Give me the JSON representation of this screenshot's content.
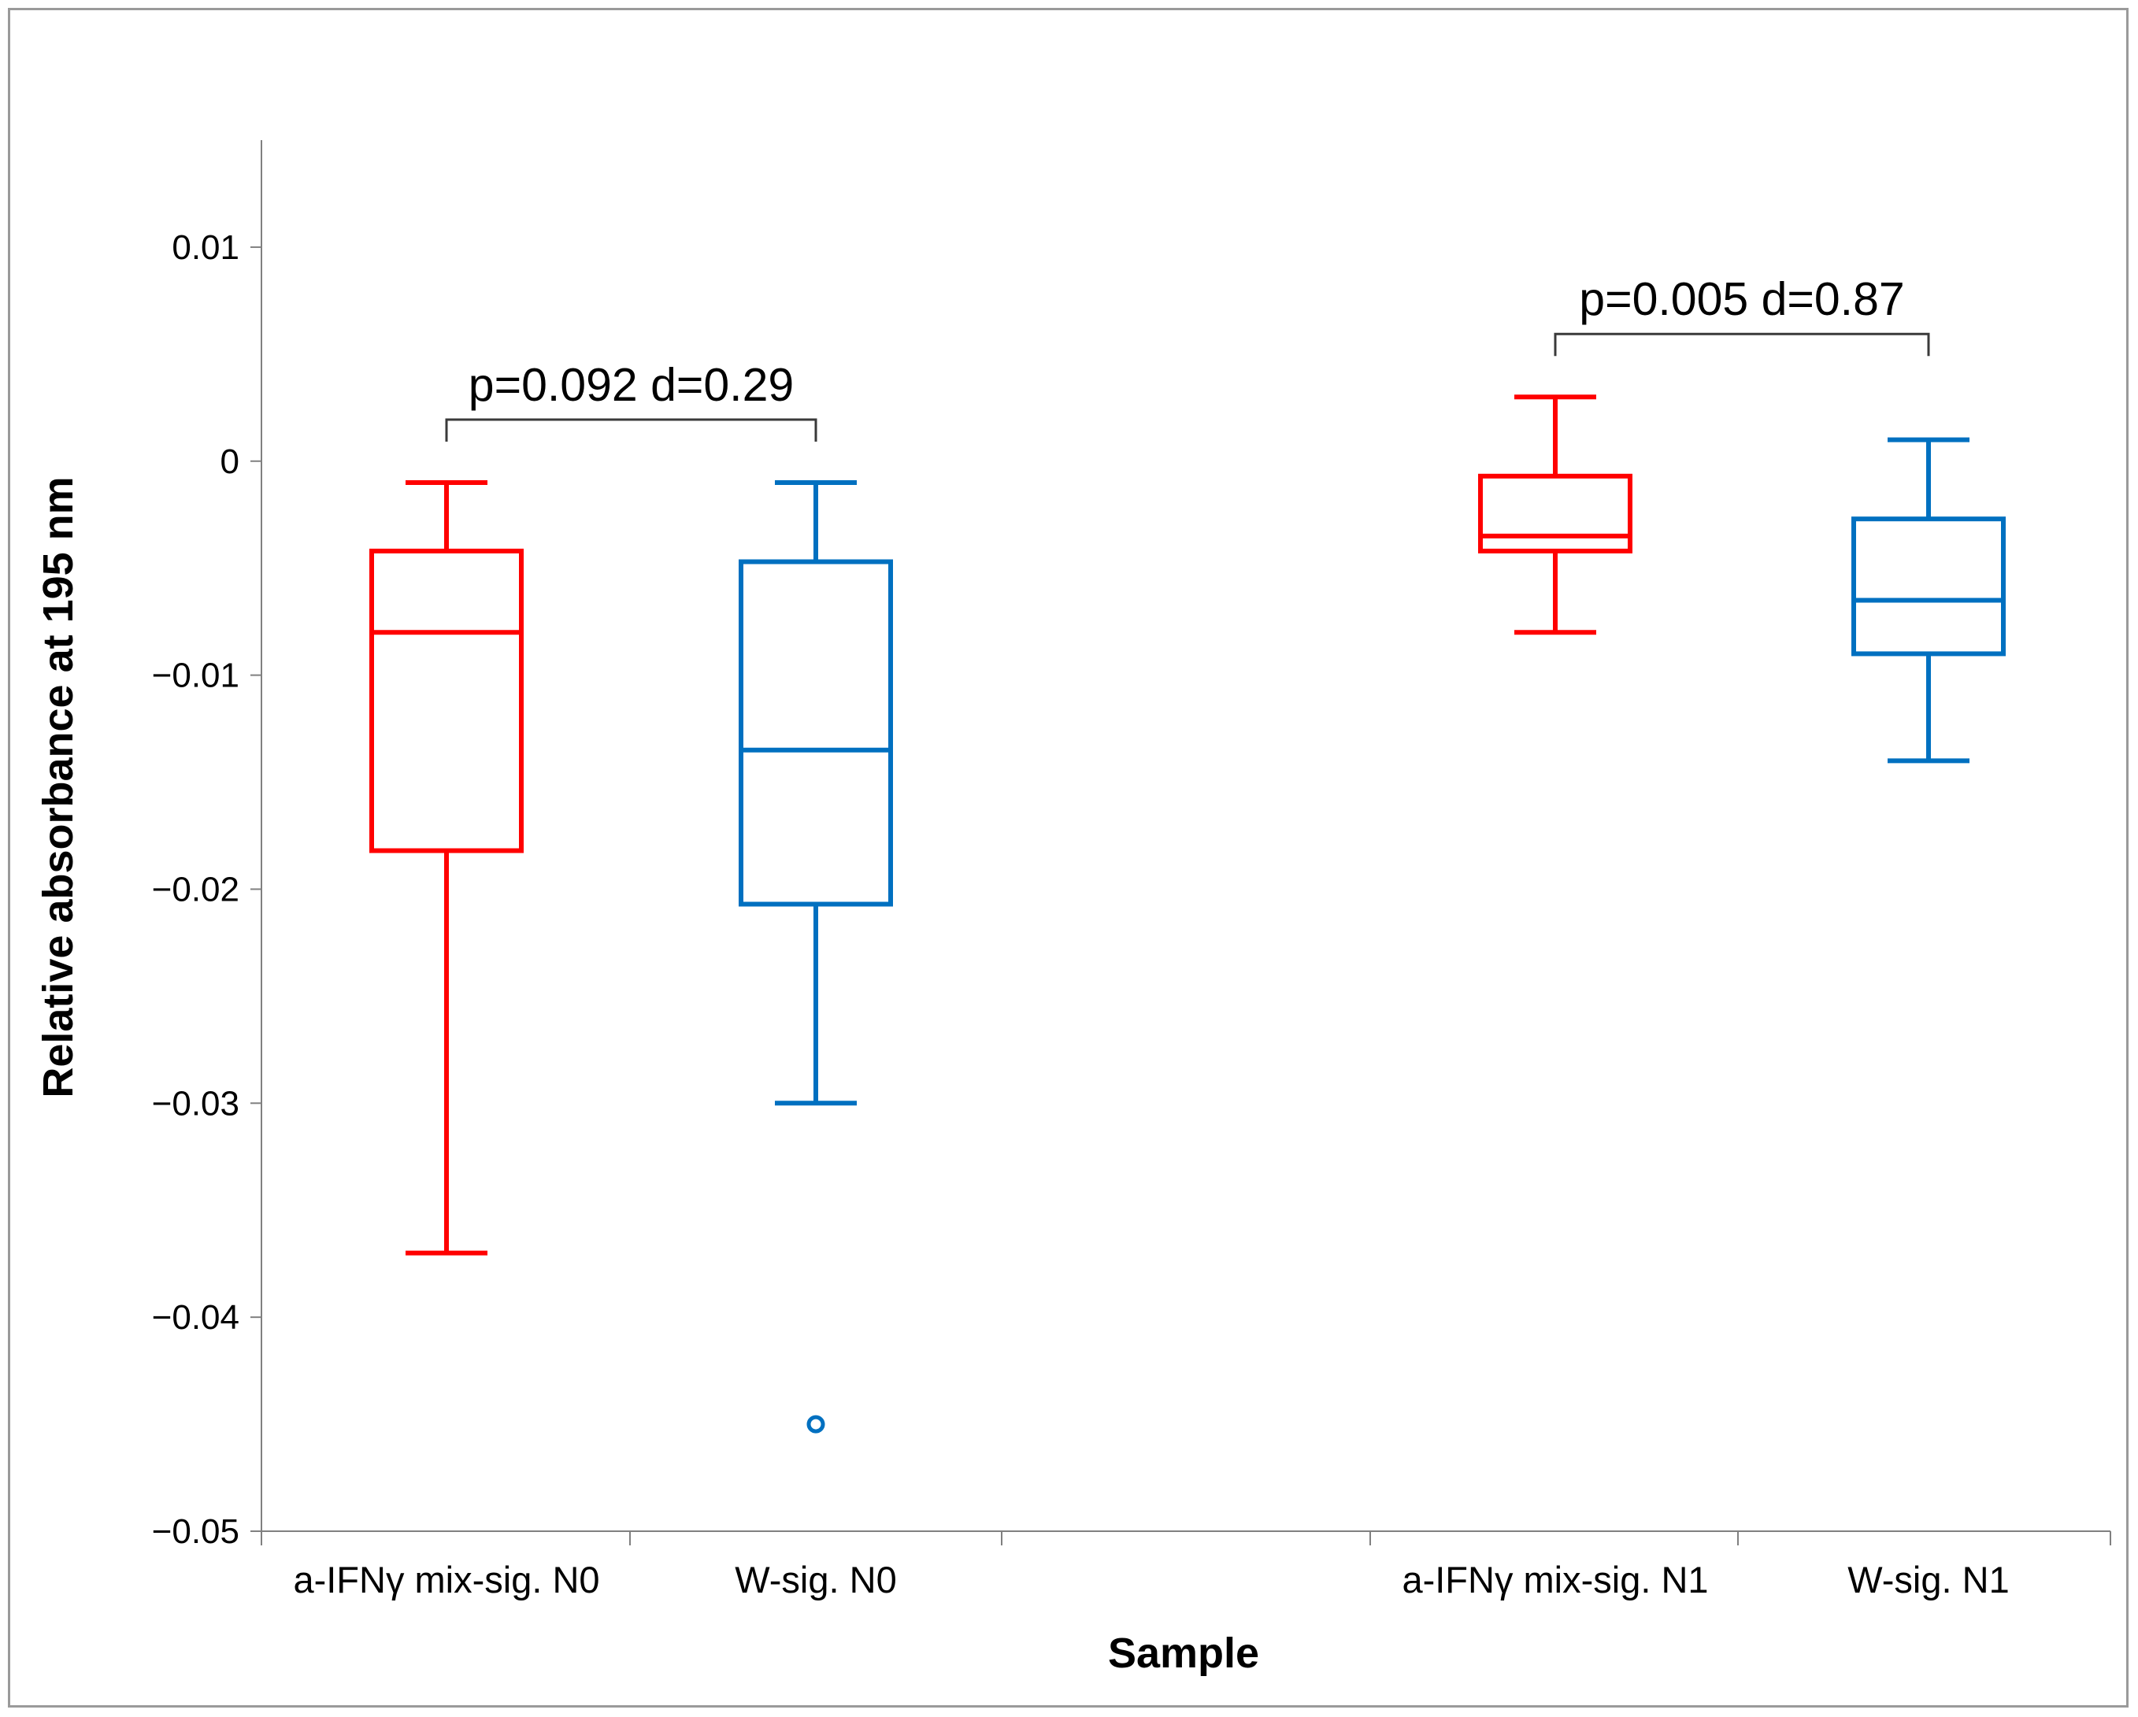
{
  "chart_data": {
    "type": "box",
    "title": "",
    "xlabel": "Sample",
    "ylabel": "Relative absorbance at 195 nm",
    "ylim": [
      -0.05,
      0.015
    ],
    "yticks": [
      0.01,
      0,
      -0.01,
      -0.02,
      -0.03,
      -0.04,
      -0.05
    ],
    "ytick_labels": [
      "0.01",
      "0",
      "−0.01",
      "−0.02",
      "−0.03",
      "−0.04",
      "−0.05"
    ],
    "grid": false,
    "groups": [
      {
        "name": "N0",
        "boxes": [
          {
            "label": "a-IFNγ mix-sig. N0",
            "color": "#ff0000",
            "min": -0.037,
            "q1": -0.0182,
            "median": -0.008,
            "q3": -0.0042,
            "max": -0.001,
            "outliers": []
          },
          {
            "label": "W-sig. N0",
            "color": "#0070c0",
            "min": -0.03,
            "q1": -0.0207,
            "median": -0.0135,
            "q3": -0.0047,
            "max": -0.001,
            "outliers": [
              -0.045
            ]
          }
        ],
        "annotation": "p=0.092  d=0.29"
      },
      {
        "name": "N1",
        "boxes": [
          {
            "label": "a-IFNγ mix-sig. N1",
            "color": "#ff0000",
            "min": -0.008,
            "q1": -0.0042,
            "median": -0.0035,
            "q3": -0.0007,
            "max": 0.003,
            "outliers": []
          },
          {
            "label": "W-sig. N1",
            "color": "#0070c0",
            "min": -0.014,
            "q1": -0.009,
            "median": -0.0065,
            "q3": -0.0027,
            "max": 0.001,
            "outliers": []
          }
        ],
        "annotation": "p=0.005  d=0.87"
      }
    ]
  }
}
